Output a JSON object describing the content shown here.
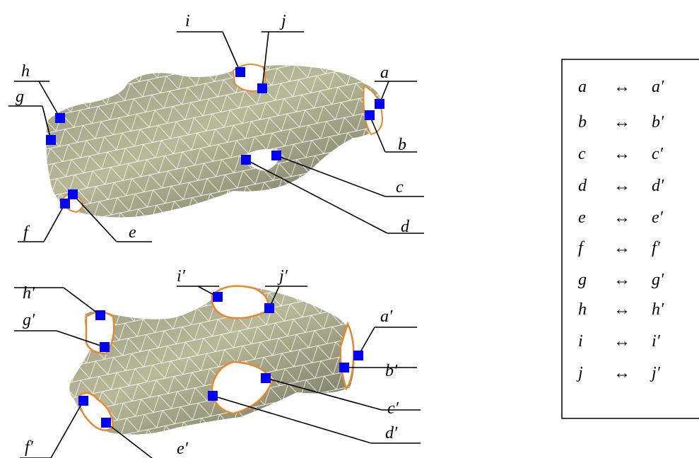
{
  "top_labels": [
    "a",
    "b",
    "c",
    "d",
    "e",
    "f",
    "g",
    "h",
    "i",
    "j"
  ],
  "bottom_labels": [
    "a′",
    "b′",
    "c′",
    "d′",
    "e′",
    "f′",
    "g′",
    "h′",
    "i′",
    "j′"
  ],
  "table": {
    "rows": [
      [
        "a",
        "↔",
        "a′"
      ],
      [
        "b",
        "↔",
        "b′"
      ],
      [
        "c",
        "↔",
        "c′"
      ],
      [
        "d",
        "↔",
        "d′"
      ],
      [
        "e",
        "↔",
        "e′"
      ],
      [
        "f",
        "↔",
        "f′"
      ],
      [
        "g",
        "↔",
        "g′"
      ],
      [
        "h",
        "↔",
        "h′"
      ],
      [
        "i",
        "↔",
        "i′"
      ],
      [
        "j",
        "↔",
        "j′"
      ]
    ]
  }
}
